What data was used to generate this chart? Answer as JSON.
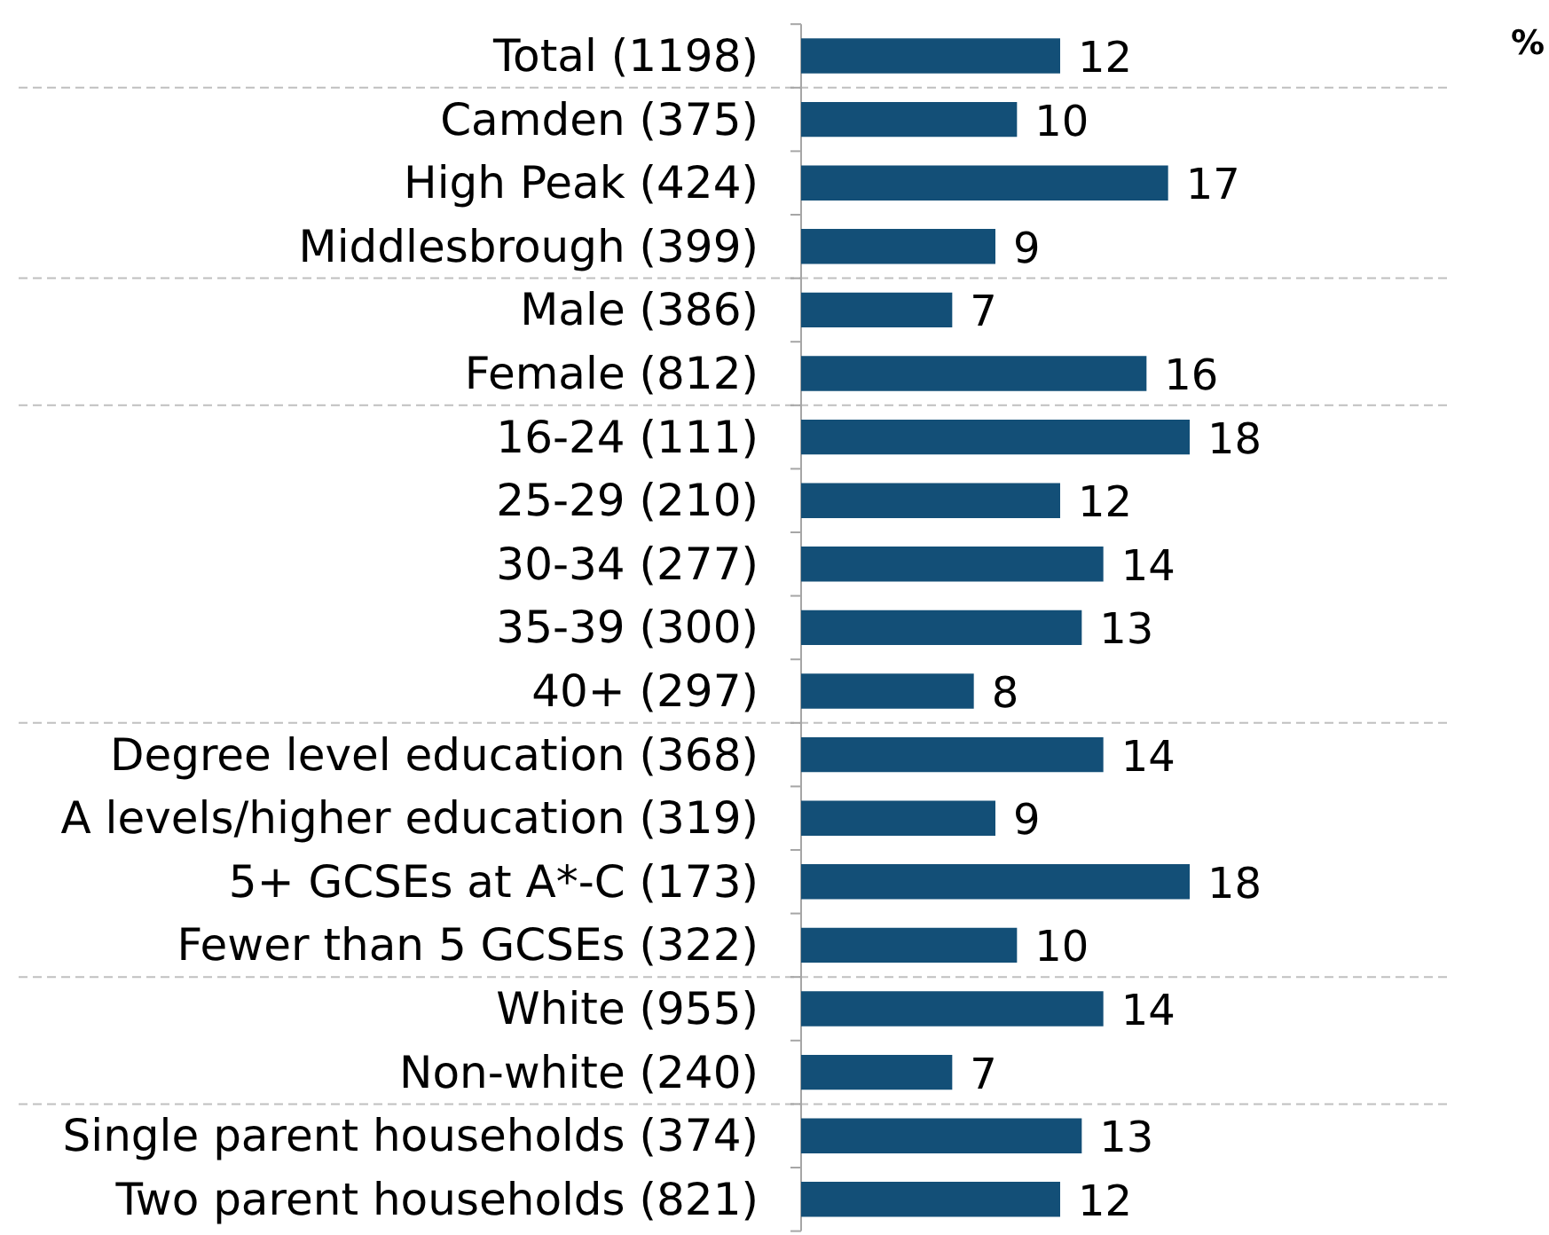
{
  "chart_data": {
    "type": "bar",
    "orientation": "horizontal",
    "tick_labels": "y",
    "data_labels": true,
    "color": "#134f77",
    "categories": [
      "Total (1198)",
      "Camden (375)",
      "High Peak (424)",
      "Middlesbrough (399)",
      "Male (386)",
      "Female (812)",
      "16-24 (111)",
      "25-29 (210)",
      "30-34 (277)",
      "35-39 (300)",
      "40+ (297)",
      "Degree level education (368)",
      "A levels/higher education (319)",
      "5+ GCSEs at A*-C (173)",
      "Fewer than 5 GCSEs (322)",
      "White (955)",
      "Non-white (240)",
      "Single parent households (374)",
      "Two parent households (821)"
    ],
    "values": [
      12,
      10,
      17,
      9,
      7,
      16,
      18,
      12,
      14,
      13,
      8,
      14,
      9,
      18,
      10,
      14,
      7,
      13,
      12
    ],
    "annotations": [
      "%"
    ]
  }
}
